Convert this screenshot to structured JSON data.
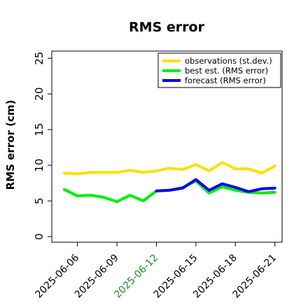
{
  "chart_data": {
    "type": "line",
    "title": "RMS error",
    "ylabel": "RMS error (cm)",
    "xlabel": "",
    "ylim": [
      0,
      26
    ],
    "yticks": [
      0,
      5,
      10,
      15,
      20,
      25
    ],
    "xticks": [
      "2025-06-06",
      "2025-06-09",
      "2025-06-12",
      "2025-06-15",
      "2025-06-18",
      "2025-06-21"
    ],
    "highlight_tick": "2025-06-12",
    "highlight_color": "#228b22",
    "legend_position": "top-right",
    "grid": false,
    "series": [
      {
        "name": "observations (st.dev.)",
        "color": "#ffe000",
        "x": [
          "2025-06-05",
          "2025-06-06",
          "2025-06-07",
          "2025-06-08",
          "2025-06-09",
          "2025-06-10",
          "2025-06-11",
          "2025-06-12",
          "2025-06-13",
          "2025-06-14",
          "2025-06-15",
          "2025-06-16",
          "2025-06-17",
          "2025-06-18",
          "2025-06-19",
          "2025-06-20",
          "2025-06-21"
        ],
        "values": [
          8.9,
          8.8,
          9.0,
          9.0,
          9.0,
          9.3,
          9.0,
          9.2,
          9.6,
          9.4,
          10.1,
          9.2,
          10.4,
          9.5,
          9.5,
          8.9,
          9.9
        ]
      },
      {
        "name": "best est. (RMS error)",
        "color": "#00ee00",
        "x": [
          "2025-06-05",
          "2025-06-06",
          "2025-06-07",
          "2025-06-08",
          "2025-06-09",
          "2025-06-10",
          "2025-06-11",
          "2025-06-12",
          "2025-06-13",
          "2025-06-14",
          "2025-06-15",
          "2025-06-16",
          "2025-06-17",
          "2025-06-18",
          "2025-06-19",
          "2025-06-20",
          "2025-06-21"
        ],
        "values": [
          6.6,
          5.7,
          5.8,
          5.5,
          4.9,
          5.8,
          5.0,
          6.4,
          6.5,
          6.9,
          7.8,
          6.1,
          7.0,
          6.5,
          6.2,
          6.1,
          6.2
        ]
      },
      {
        "name": "forecast (RMS error)",
        "color": "#0000ee",
        "x": [
          "2025-06-12",
          "2025-06-13",
          "2025-06-14",
          "2025-06-15",
          "2025-06-16",
          "2025-06-17",
          "2025-06-18",
          "2025-06-19",
          "2025-06-20",
          "2025-06-21"
        ],
        "values": [
          6.4,
          6.5,
          6.8,
          8.0,
          6.5,
          7.4,
          6.9,
          6.3,
          6.7,
          6.8
        ]
      }
    ]
  }
}
